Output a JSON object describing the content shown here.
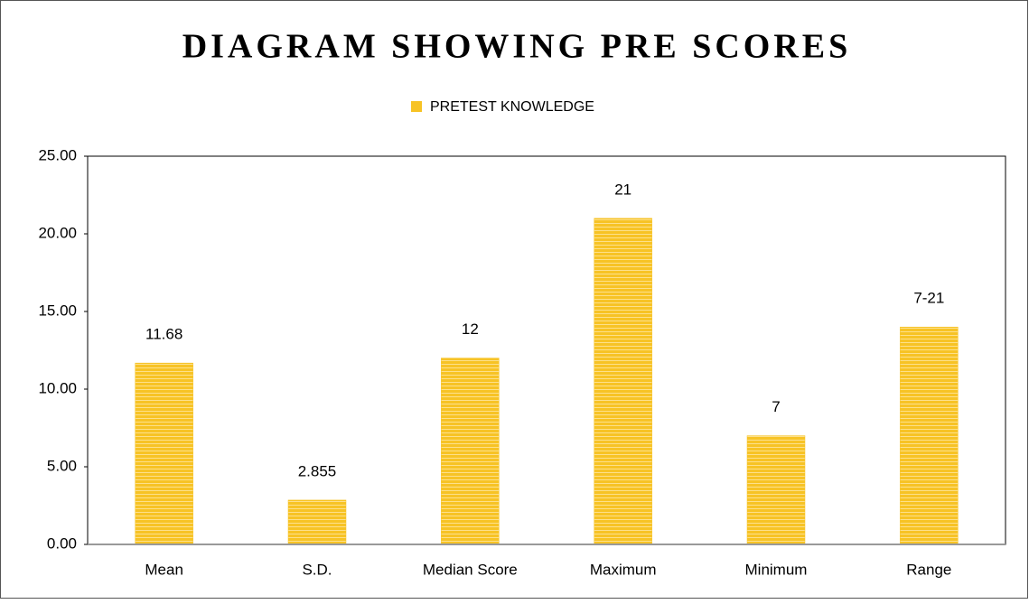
{
  "chart_data": {
    "type": "bar",
    "title": "DIAGRAM SHOWING PRE SCORES",
    "categories": [
      "Mean",
      "S.D.",
      "Median Score",
      "Maximum",
      "Minimum",
      "Range"
    ],
    "series": [
      {
        "name": "PRETEST KNOWLEDGE",
        "color": "#f7c325",
        "values": [
          11.68,
          2.855,
          12,
          21,
          7,
          14
        ],
        "value_labels": [
          "11.68",
          "2.855",
          "12",
          "21",
          "7",
          "7-21"
        ]
      }
    ],
    "ylim": [
      0,
      25
    ],
    "yticks": [
      {
        "value": 0,
        "label": "0.00"
      },
      {
        "value": 5,
        "label": "5.00"
      },
      {
        "value": 10,
        "label": "10.00"
      },
      {
        "value": 15,
        "label": "15.00"
      },
      {
        "value": 20,
        "label": "20.00"
      },
      {
        "value": 25,
        "label": "25.00"
      }
    ],
    "legend": "top",
    "grid": false
  }
}
